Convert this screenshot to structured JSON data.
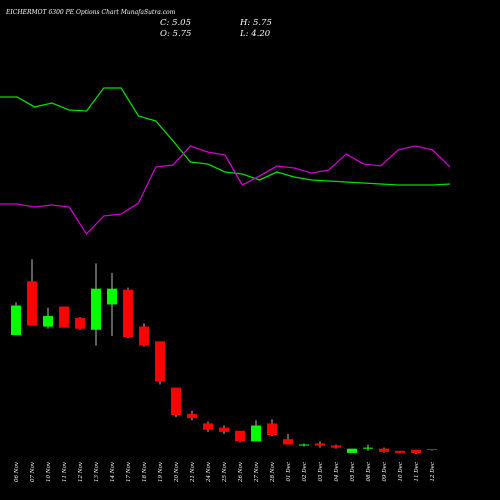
{
  "chart_data": {
    "type": "candlestick",
    "title": "EICHERMOT 6300  PE Options  Chart MunafaSutra.com",
    "info": [
      "C: 5.05",
      "H: 5.75",
      "O: 5.75",
      "L: 4.20"
    ],
    "categories": [
      "06 Nov",
      "07 Nov",
      "10 Nov",
      "11 Nov",
      "12 Nov",
      "13 Nov",
      "14 Nov",
      "17 Nov",
      "18 Nov",
      "19 Nov",
      "20 Nov",
      "21 Nov",
      "24 Nov",
      "25 Nov",
      "26 Nov",
      "27 Nov",
      "28 Nov",
      "01 Dec",
      "02 Dec",
      "03 Dec",
      "04 Dec",
      "05 Dec",
      "08 Dec",
      "09 Dec",
      "10 Dec",
      "11 Dec",
      "12 Dec"
    ],
    "open": [
      114,
      165,
      122,
      141,
      130,
      119,
      143,
      157,
      122,
      108,
      64,
      39,
      30,
      26,
      23,
      13,
      30,
      15,
      9,
      11,
      9,
      2,
      6,
      6,
      4,
      5,
      5.75
    ],
    "high": [
      145,
      186,
      140,
      141,
      131,
      182,
      173,
      159,
      125,
      108,
      64,
      42,
      32,
      28,
      23,
      33,
      34,
      20,
      11,
      13,
      10,
      6,
      10,
      7,
      4,
      5,
      5.75
    ],
    "low": [
      114,
      123,
      120,
      121,
      119,
      104,
      113,
      111,
      103,
      67,
      36,
      33,
      22,
      20,
      12,
      13,
      18,
      10,
      8,
      7,
      6,
      2,
      4,
      2,
      2,
      1,
      4.2
    ],
    "close": [
      142,
      123,
      132,
      121,
      120,
      158,
      158,
      112,
      104,
      70,
      38,
      35,
      24,
      22,
      13,
      28,
      19,
      10,
      10,
      9,
      7,
      6,
      7,
      3,
      2,
      2,
      5.05
    ],
    "up_color": "#00ff00",
    "down_color": "#ff0000",
    "wick_color": "#bbbbbb",
    "ylim": [
      0,
      190
    ],
    "lines": {
      "ylim": [
        0,
        200
      ],
      "series": [
        {
          "color": "#00dd00",
          "values": [
            163,
            163,
            153,
            157,
            150,
            149,
            172,
            172,
            144,
            139,
            119,
            98,
            96,
            88,
            86,
            80,
            88,
            83,
            80,
            79,
            78,
            77,
            76,
            75,
            75,
            75,
            76
          ]
        },
        {
          "color": "#cc00cc",
          "values": [
            56,
            56,
            53,
            55,
            53,
            26,
            44,
            46,
            57,
            93,
            95,
            114,
            108,
            105,
            75,
            84,
            94,
            92,
            87,
            90,
            106,
            96,
            94,
            110,
            114,
            110,
            93
          ]
        }
      ]
    }
  }
}
